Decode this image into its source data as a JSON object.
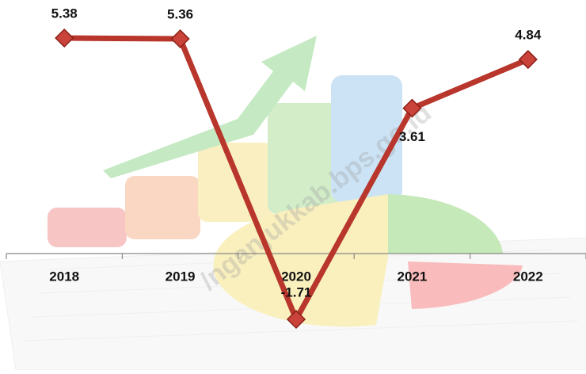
{
  "chart_data": {
    "type": "line",
    "categories": [
      "2018",
      "2019",
      "2020",
      "2021",
      "2022"
    ],
    "series": [
      {
        "name": null,
        "color": "#b8362c",
        "values": [
          5.38,
          5.36,
          -1.71,
          3.61,
          4.84
        ]
      }
    ],
    "watermark": "/nganjukkab.bps.go.id"
  }
}
